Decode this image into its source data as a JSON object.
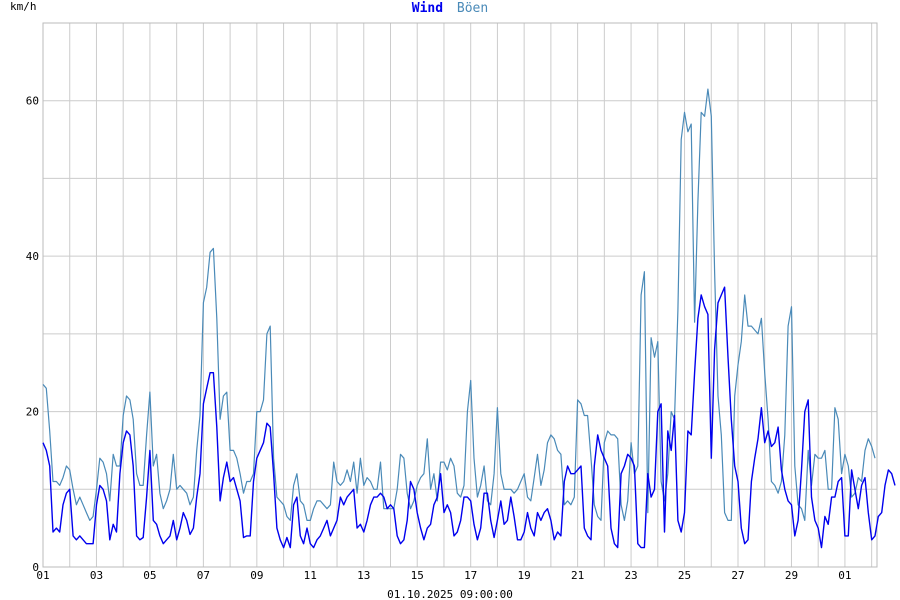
{
  "chart_data": {
    "type": "line",
    "title": {
      "wind": "Wind",
      "gust": "Böen"
    },
    "unit": "km/h",
    "footer": "01.10.2025 09:00:00",
    "x_tick_labels": [
      "01",
      "03",
      "05",
      "07",
      "09",
      "11",
      "13",
      "15",
      "17",
      "19",
      "21",
      "23",
      "25",
      "27",
      "29",
      "01"
    ],
    "x_domain": [
      0,
      31.2
    ],
    "samples_per_day": 8,
    "ylim": [
      0,
      70
    ],
    "y_ticks": [
      0,
      20,
      40,
      60
    ],
    "y_minor_step": 10,
    "grid": true,
    "series": [
      {
        "name": "Wind",
        "color": "#0000ee",
        "values": [
          16,
          15,
          13,
          4.5,
          5,
          4.5,
          8,
          9.5,
          10,
          4,
          3.5,
          4,
          3.5,
          3,
          3,
          3,
          8,
          10.5,
          10,
          8.5,
          3.5,
          5.5,
          4.5,
          12,
          16,
          17.5,
          17,
          13,
          4,
          3.5,
          3.8,
          9,
          15,
          6,
          5.5,
          4,
          3,
          3.5,
          4,
          6,
          3.5,
          5,
          7,
          6,
          4.2,
          5,
          9,
          12,
          21,
          23,
          25,
          25,
          18,
          8.5,
          11.5,
          13.5,
          11,
          11.5,
          10,
          8.5,
          3.8,
          4,
          4,
          11,
          14,
          15,
          16,
          18.5,
          18,
          12,
          5,
          3.5,
          2.5,
          3.8,
          2.5,
          8,
          9,
          4,
          3,
          5,
          3,
          2.5,
          3.5,
          4,
          5,
          6,
          4,
          5,
          6,
          9,
          8,
          9,
          9.5,
          10,
          5,
          5.5,
          4.5,
          6,
          8,
          9,
          9,
          9.5,
          9,
          7.5,
          8,
          7.5,
          4,
          3,
          3.5,
          6,
          11,
          10,
          7,
          5,
          3.5,
          5,
          5.5,
          8,
          9,
          12,
          7,
          8,
          7,
          4,
          4.5,
          6,
          9,
          9,
          8.5,
          5.5,
          3.5,
          5,
          9.5,
          9.5,
          6,
          3.8,
          6,
          8.5,
          5.5,
          6,
          9,
          6.5,
          3.5,
          3.5,
          4.5,
          7,
          5,
          4,
          7,
          6,
          7,
          7.5,
          6,
          3.5,
          4.5,
          4,
          11,
          13,
          12,
          12,
          12.5,
          13,
          5,
          4,
          3.5,
          13,
          17,
          15,
          14,
          13,
          5,
          3,
          2.5,
          12,
          13,
          14.5,
          14,
          13,
          3,
          2.5,
          2.5,
          12,
          9,
          10,
          20,
          21,
          4.5,
          17.5,
          15,
          19.5,
          6,
          4.5,
          7,
          17.5,
          17,
          25,
          32,
          35,
          33.5,
          32.5,
          14,
          28,
          34,
          35,
          36,
          27,
          19,
          13,
          11,
          5,
          3,
          3.5,
          11,
          14,
          16.5,
          20.5,
          16,
          17.5,
          15.5,
          16,
          18,
          12.5,
          10,
          8.5,
          8,
          4,
          6,
          12.5,
          20,
          21.5,
          9,
          6,
          5,
          2.5,
          6.5,
          5.5,
          9,
          9,
          11,
          11.5,
          4,
          4,
          12.5,
          10,
          7.5,
          10.5,
          11.5,
          7,
          3.5,
          4,
          6.5,
          7,
          10.5,
          12.5,
          12,
          10.5
        ]
      },
      {
        "name": "Böen",
        "color": "#4a8ab8",
        "values": [
          23.5,
          23,
          17.5,
          11,
          11,
          10.5,
          11.5,
          13,
          12.5,
          10,
          8,
          9,
          8,
          7,
          6,
          6.5,
          10,
          14,
          13.5,
          12,
          8.5,
          14.5,
          13,
          13,
          19.5,
          22,
          21.5,
          19,
          12,
          10.5,
          10.5,
          17,
          22.5,
          13,
          14.5,
          9.5,
          7.5,
          8.5,
          10,
          14.5,
          10,
          10.5,
          10,
          9.5,
          8,
          9,
          15,
          19.5,
          34,
          36,
          40.5,
          41,
          32,
          19,
          22,
          22.5,
          15,
          15,
          14,
          12,
          9.5,
          11,
          11,
          12,
          20,
          20,
          21.5,
          30,
          31,
          14,
          9,
          8.5,
          8,
          6.5,
          6,
          10.5,
          12,
          8.5,
          8,
          6,
          6,
          7.5,
          8.5,
          8.5,
          8,
          7.5,
          8,
          13.5,
          11,
          10.5,
          11,
          12.5,
          11,
          13.5,
          9.5,
          14,
          10.5,
          11.5,
          11,
          10,
          10,
          13.5,
          7.5,
          7.5,
          7.5,
          7.5,
          10,
          14.5,
          14,
          9.5,
          7.5,
          8.5,
          10.5,
          11.5,
          12,
          16.5,
          10,
          12,
          8.5,
          13.5,
          13.5,
          12.5,
          14,
          13,
          9.5,
          9,
          10.5,
          20,
          24,
          14,
          9,
          10.5,
          13,
          8.5,
          8,
          12,
          20.5,
          12,
          10,
          10,
          10,
          9.5,
          10,
          11,
          12,
          9,
          8.5,
          11.5,
          14.5,
          10.5,
          12.5,
          16,
          17,
          16.5,
          15,
          14.5,
          8,
          8.5,
          8,
          9,
          21.5,
          21,
          19.5,
          19.5,
          14,
          8,
          6.5,
          6,
          16,
          17.5,
          17,
          17,
          16.5,
          8,
          6,
          8.5,
          16,
          12,
          13,
          35,
          38,
          7,
          29.5,
          27,
          29,
          11,
          8.5,
          12,
          20,
          19,
          33,
          55,
          58.5,
          56,
          57,
          31.5,
          47,
          58.5,
          58,
          61.5,
          58,
          38,
          22,
          17,
          7,
          6,
          6,
          22,
          26,
          29,
          35,
          31,
          31,
          30.5,
          30,
          32,
          25,
          19,
          11,
          10.5,
          9.5,
          11,
          17,
          31,
          33.5,
          13,
          8,
          7.5,
          6,
          15,
          10.5,
          14.5,
          14,
          14,
          15,
          10,
          10,
          20.5,
          19,
          12,
          14.5,
          13,
          9,
          9.5,
          11.5,
          11,
          15,
          16.5,
          15.5,
          14
        ]
      }
    ]
  }
}
